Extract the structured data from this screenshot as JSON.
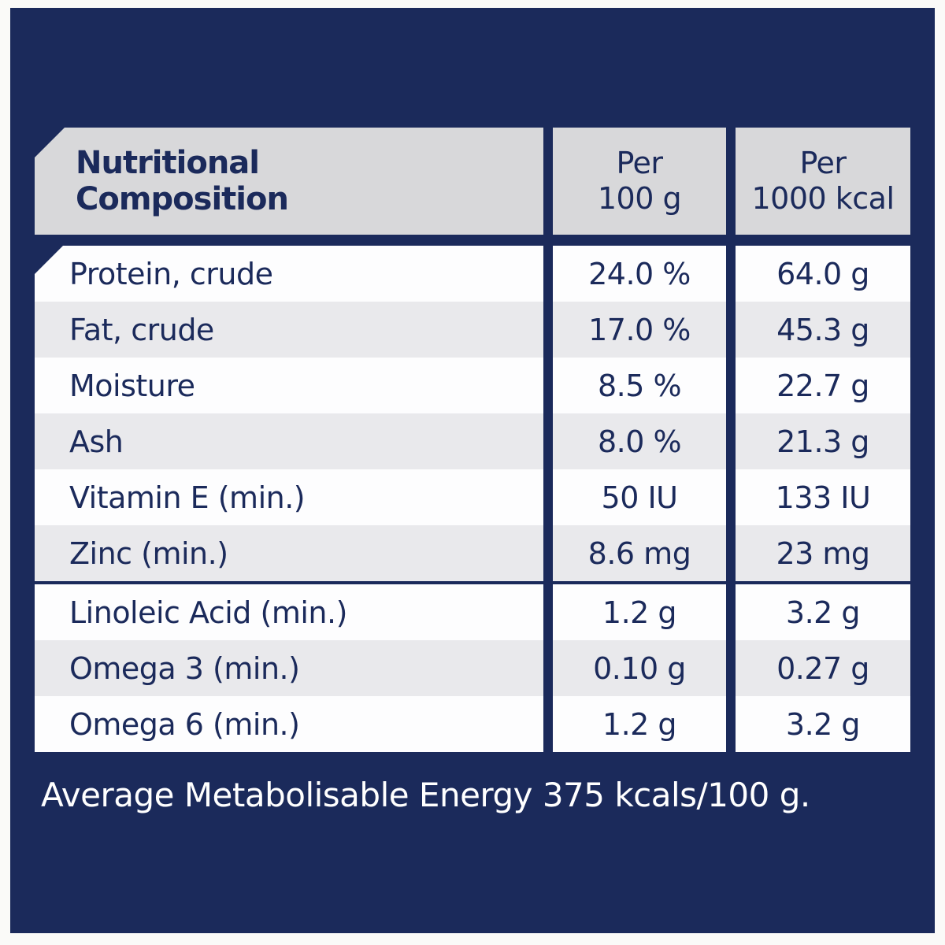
{
  "colors": {
    "panel_navy": "#1b2a5b",
    "frame_white": "#fafaf8",
    "header_gray": "#d8d8da",
    "stripe_gray": "#e9e9ec",
    "row_white": "#fdfdfe",
    "text_navy": "#1b2a5b",
    "footer_text_white": "#ffffff"
  },
  "table": {
    "header": {
      "title_line1": "Nutritional",
      "title_line2": "Composition",
      "per100_line1": "Per",
      "per100_line2": "100 g",
      "per1000_line1": "Per",
      "per1000_line2": "1000 kcal"
    },
    "rows": [
      {
        "label": "Protein, crude",
        "per100": "24.0 %",
        "per1000": "64.0 g"
      },
      {
        "label": "Fat, crude",
        "per100": "17.0 %",
        "per1000": "45.3 g"
      },
      {
        "label": "Moisture",
        "per100": "8.5 %",
        "per1000": "22.7 g"
      },
      {
        "label": "Ash",
        "per100": "8.0 %",
        "per1000": "21.3 g"
      },
      {
        "label": "Vitamin E (min.)",
        "per100": "50 IU",
        "per1000": "133 IU"
      },
      {
        "label": "Zinc (min.)",
        "per100": "8.6 mg",
        "per1000": "23 mg"
      },
      {
        "label": "Linoleic Acid (min.)",
        "per100": "1.2 g",
        "per1000": "3.2 g"
      },
      {
        "label": "Omega 3 (min.)",
        "per100": "0.10 g",
        "per1000": "0.27 g"
      },
      {
        "label": "Omega 6 (min.)",
        "per100": "1.2 g",
        "per1000": "3.2 g"
      }
    ]
  },
  "footer": {
    "energy_text": "Average Metabolisable Energy 375 kcals/100 g."
  }
}
